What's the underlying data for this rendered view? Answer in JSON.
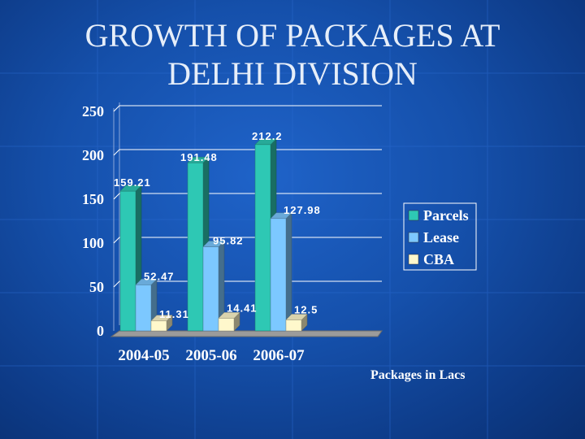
{
  "slide": {
    "title_line1": "GROWTH OF PACKAGES AT",
    "title_line2": "DELHI DIVISION",
    "footnote": "Packages in Lacs"
  },
  "colors": {
    "parcels": "#2ec8b4",
    "lease": "#7cc8ff",
    "cba": "#fff8cc",
    "label": "#ffffff",
    "grid": "#ffffff"
  },
  "chart_data": {
    "type": "bar",
    "title": "",
    "xlabel": "",
    "ylabel": "",
    "categories": [
      "2004-05",
      "2005-06",
      "2006-07"
    ],
    "series": [
      {
        "name": "Parcels",
        "values": [
          159.21,
          191.48,
          212.2
        ]
      },
      {
        "name": "Lease",
        "values": [
          52.47,
          95.82,
          127.98
        ]
      },
      {
        "name": "CBA",
        "values": [
          11.31,
          14.41,
          12.5
        ]
      }
    ],
    "data_labels": [
      [
        "159.21",
        "191.48",
        "212.2"
      ],
      [
        "52.47",
        "95.82",
        "127.98"
      ],
      [
        "11.31",
        "14.41",
        "12.5"
      ]
    ],
    "ylim": [
      0,
      250
    ],
    "yticks": [
      "0",
      "50",
      "100",
      "150",
      "200",
      "250"
    ],
    "ytick_values": [
      0,
      50,
      100,
      150,
      200,
      250
    ],
    "grid": true,
    "legend_position": "right",
    "style": "3d-column"
  }
}
